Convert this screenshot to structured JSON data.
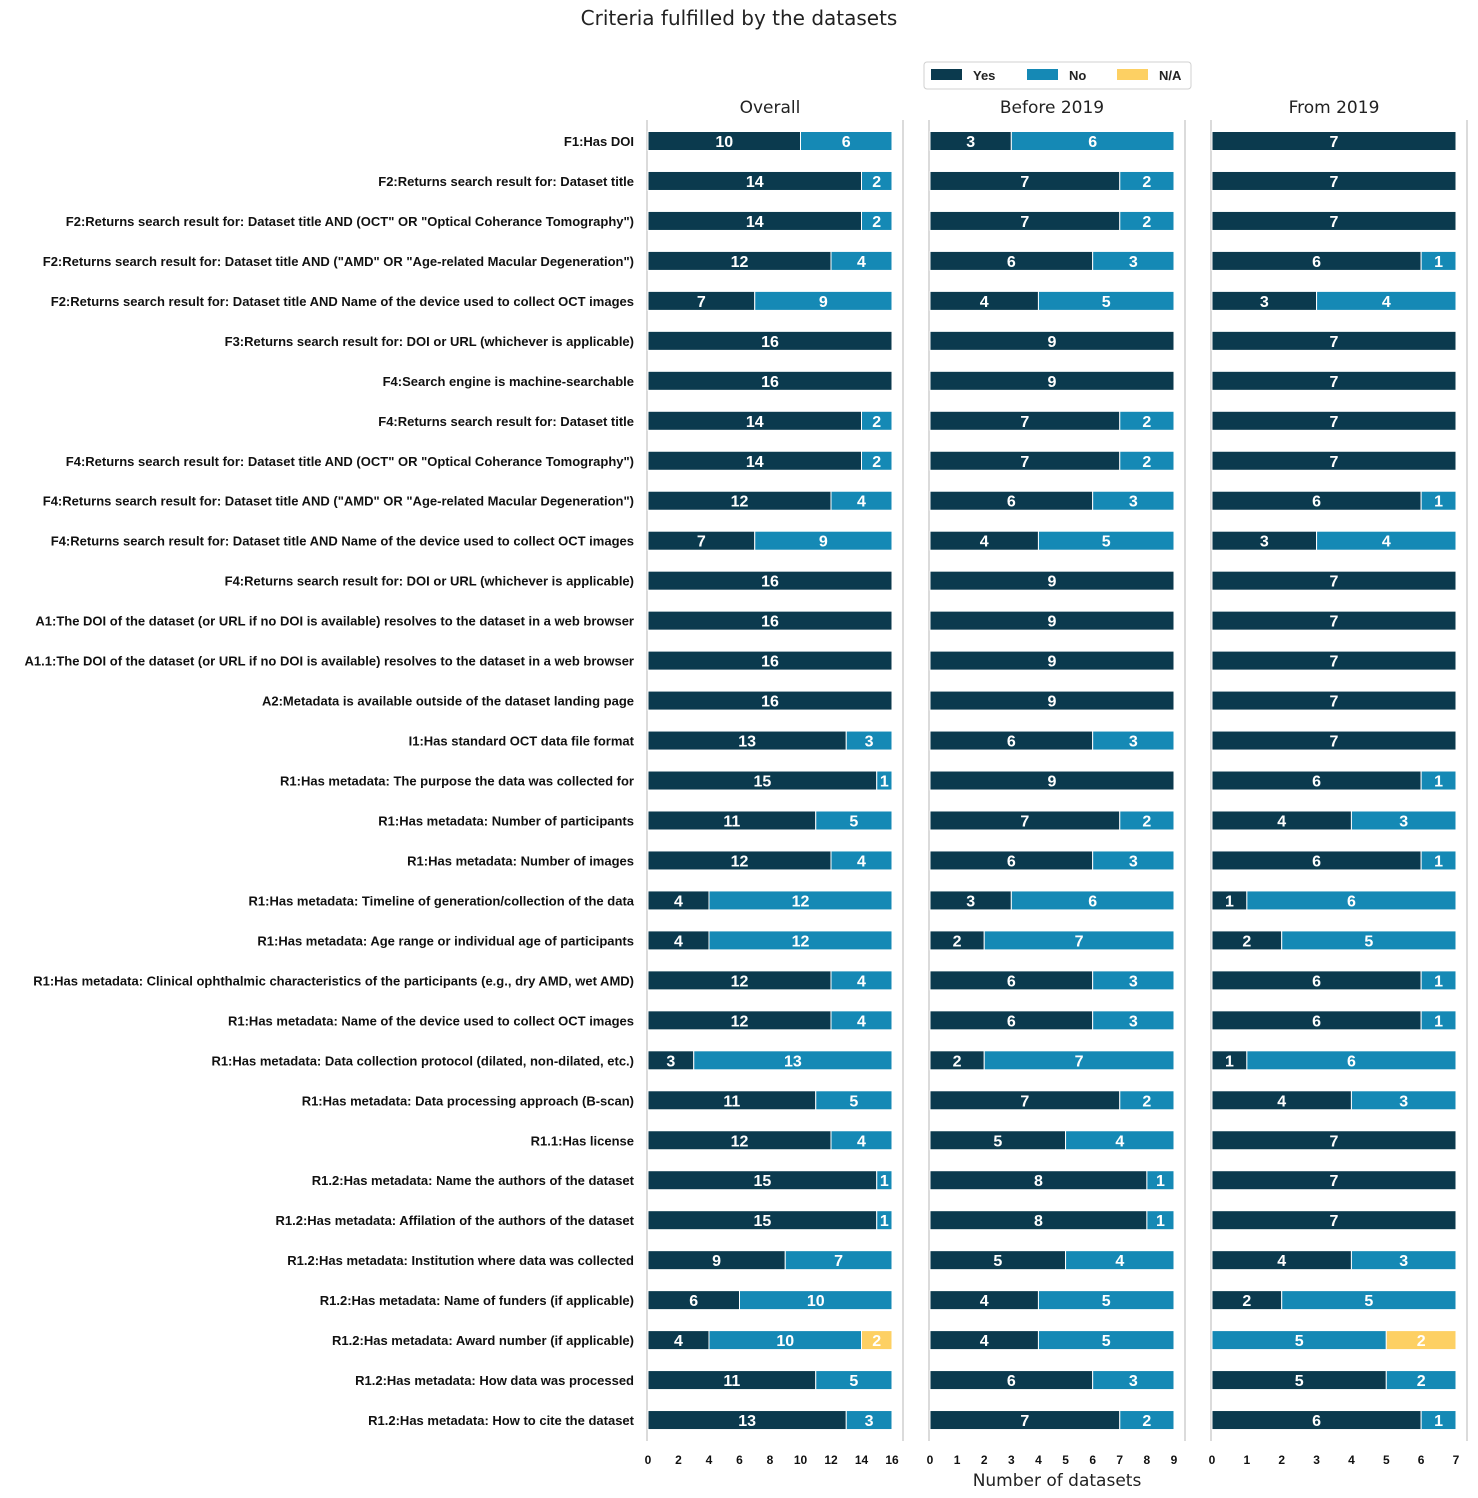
{
  "chart_data": {
    "type": "bar",
    "orientation": "horizontal",
    "stacked": true,
    "title": "Criteria fulfilled by the datasets",
    "xlabel": "Number of datasets",
    "legend": {
      "placement": "top-right",
      "entries": [
        {
          "name": "Yes",
          "color": "#0b3a4e"
        },
        {
          "name": "No",
          "color": "#1589b5"
        },
        {
          "name": "N/A",
          "color": "#fdd063"
        }
      ]
    },
    "categories": [
      "F1:Has DOI",
      "F2:Returns search result for: Dataset title",
      "F2:Returns search result for: Dataset title AND (OCT\" OR \"Optical Coherance Tomography\")",
      "F2:Returns search result for: Dataset title AND (\"AMD\" OR \"Age-related Macular Degeneration\")",
      "F2:Returns search result for: Dataset title AND Name of the device used to collect OCT images",
      "F3:Returns search result for: DOI or URL (whichever is applicable)",
      "F4:Search engine is machine-searchable",
      "F4:Returns search result for: Dataset title",
      "F4:Returns search result for: Dataset title AND (OCT\" OR \"Optical Coherance Tomography\")",
      "F4:Returns search result for: Dataset title AND (\"AMD\" OR \"Age-related Macular Degeneration\")",
      "F4:Returns search result for: Dataset title AND Name of the device used to collect OCT images",
      "F4:Returns search result for: DOI or URL (whichever is applicable)",
      "A1:The DOI of the dataset (or URL if no DOI is available) resolves to the dataset in a web browser",
      "A1.1:The DOI of the dataset (or URL if no DOI is available) resolves to the dataset in a web browser",
      "A2:Metadata is available outside of the dataset landing page",
      "I1:Has standard OCT data file format",
      "R1:Has metadata: The purpose the data was collected for",
      "R1:Has metadata: Number of participants",
      "R1:Has metadata: Number of images",
      "R1:Has metadata: Timeline of generation/collection of the data",
      "R1:Has metadata: Age range or individual age of participants",
      "R1:Has metadata: Clinical ophthalmic characteristics of the participants (e.g., dry AMD, wet AMD)",
      "R1:Has metadata: Name of the device used to collect OCT images",
      "R1:Has metadata: Data collection protocol (dilated, non-dilated, etc.)",
      "R1:Has metadata: Data processing approach (B-scan)",
      "R1.1:Has license",
      "R1.2:Has metadata: Name the authors of the dataset",
      "R1.2:Has metadata: Affilation of the authors of the dataset",
      "R1.2:Has metadata: Institution where data was collected",
      "R1.2:Has metadata: Name of funders (if applicable)",
      "R1.2:Has metadata: Award number (if applicable)",
      "R1.2:Has metadata: How data was processed",
      "R1.2:Has metadata: How to cite the dataset"
    ],
    "panels": [
      {
        "title": "Overall",
        "xlim": [
          0,
          16
        ],
        "xticks": [
          0,
          2,
          4,
          6,
          8,
          10,
          12,
          14,
          16
        ],
        "series": [
          {
            "name": "Yes",
            "values": [
              10,
              14,
              14,
              12,
              7,
              16,
              16,
              14,
              14,
              12,
              7,
              16,
              16,
              16,
              16,
              13,
              15,
              11,
              12,
              4,
              4,
              12,
              12,
              3,
              11,
              12,
              15,
              15,
              9,
              6,
              4,
              11,
              13
            ]
          },
          {
            "name": "No",
            "values": [
              6,
              2,
              2,
              4,
              9,
              0,
              0,
              2,
              2,
              4,
              9,
              0,
              0,
              0,
              0,
              3,
              1,
              5,
              4,
              12,
              12,
              4,
              4,
              13,
              5,
              4,
              1,
              1,
              7,
              10,
              10,
              5,
              3
            ]
          },
          {
            "name": "N/A",
            "values": [
              0,
              0,
              0,
              0,
              0,
              0,
              0,
              0,
              0,
              0,
              0,
              0,
              0,
              0,
              0,
              0,
              0,
              0,
              0,
              0,
              0,
              0,
              0,
              0,
              0,
              0,
              0,
              0,
              0,
              0,
              2,
              0,
              0
            ]
          }
        ]
      },
      {
        "title": "Before 2019",
        "xlim": [
          0,
          9
        ],
        "xticks": [
          0,
          1,
          2,
          3,
          4,
          5,
          6,
          7,
          8,
          9
        ],
        "series": [
          {
            "name": "Yes",
            "values": [
              3,
              7,
              7,
              6,
              4,
              9,
              9,
              7,
              7,
              6,
              4,
              9,
              9,
              9,
              9,
              6,
              9,
              7,
              6,
              3,
              2,
              6,
              6,
              2,
              7,
              5,
              8,
              8,
              5,
              4,
              4,
              6,
              7
            ]
          },
          {
            "name": "No",
            "values": [
              6,
              2,
              2,
              3,
              5,
              0,
              0,
              2,
              2,
              3,
              5,
              0,
              0,
              0,
              0,
              3,
              0,
              2,
              3,
              6,
              7,
              3,
              3,
              7,
              2,
              4,
              1,
              1,
              4,
              5,
              5,
              3,
              2
            ]
          },
          {
            "name": "N/A",
            "values": [
              0,
              0,
              0,
              0,
              0,
              0,
              0,
              0,
              0,
              0,
              0,
              0,
              0,
              0,
              0,
              0,
              0,
              0,
              0,
              0,
              0,
              0,
              0,
              0,
              0,
              0,
              0,
              0,
              0,
              0,
              0,
              0,
              0
            ]
          }
        ]
      },
      {
        "title": "From 2019",
        "xlim": [
          0,
          7
        ],
        "xticks": [
          0,
          1,
          2,
          3,
          4,
          5,
          6,
          7
        ],
        "series": [
          {
            "name": "Yes",
            "values": [
              7,
              7,
              7,
              6,
              3,
              7,
              7,
              7,
              7,
              6,
              3,
              7,
              7,
              7,
              7,
              7,
              6,
              4,
              6,
              1,
              2,
              6,
              6,
              1,
              4,
              7,
              7,
              7,
              4,
              2,
              0,
              5,
              6
            ]
          },
          {
            "name": "No",
            "values": [
              0,
              0,
              0,
              1,
              4,
              0,
              0,
              0,
              0,
              1,
              4,
              0,
              0,
              0,
              0,
              0,
              1,
              3,
              1,
              6,
              5,
              1,
              1,
              6,
              3,
              0,
              0,
              0,
              3,
              5,
              5,
              2,
              1
            ]
          },
          {
            "name": "N/A",
            "values": [
              0,
              0,
              0,
              0,
              0,
              0,
              0,
              0,
              0,
              0,
              0,
              0,
              0,
              0,
              0,
              0,
              0,
              0,
              0,
              0,
              0,
              0,
              0,
              0,
              0,
              0,
              0,
              0,
              0,
              0,
              2,
              0,
              0
            ]
          }
        ]
      }
    ],
    "grid": false
  }
}
